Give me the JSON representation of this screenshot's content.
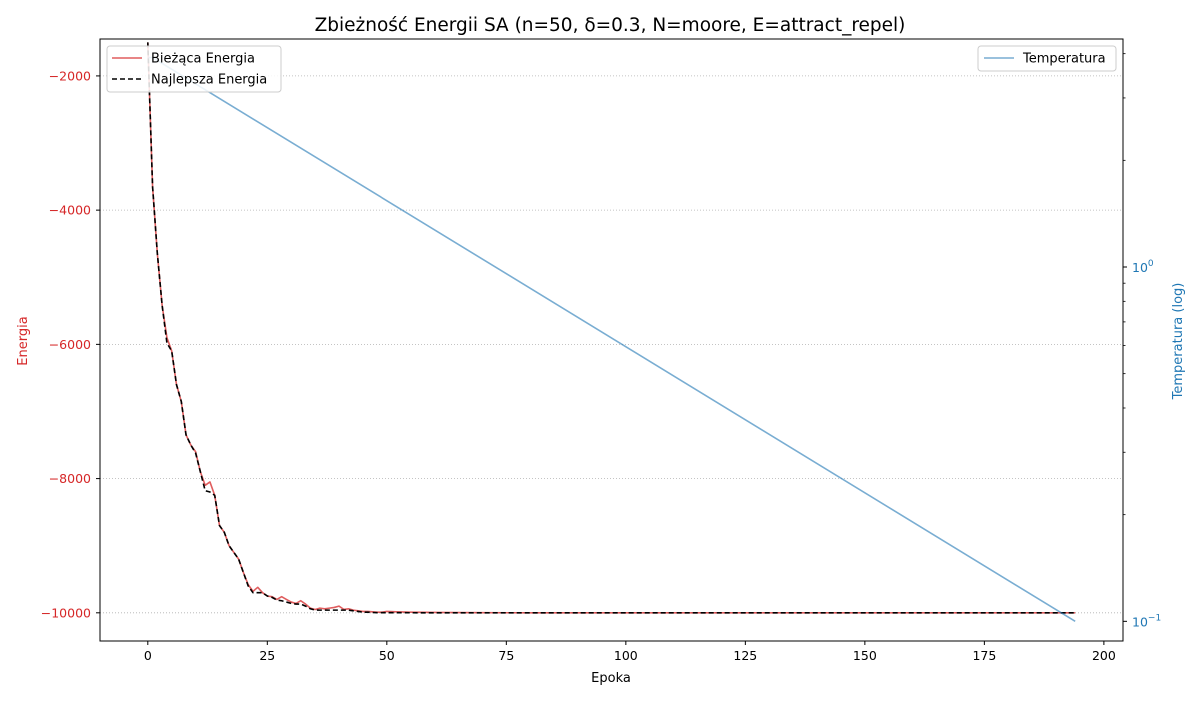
{
  "chart_data": {
    "type": "line",
    "title": "Zbieżność Energii SA (n=50, δ=0.3, N=moore, E=attract_repel)",
    "xlabel": "Epoka",
    "ylabel_left": "Energia",
    "ylabel_right": "Temperatura (log)",
    "xlim": [
      -10,
      204
    ],
    "ylim_left": [
      -10420,
      -1450
    ],
    "ylim_right": [
      0.088,
      4.4
    ],
    "yscale_right": "log",
    "x_ticks": [
      0,
      25,
      50,
      75,
      100,
      125,
      150,
      175,
      200
    ],
    "y_left_ticks": [
      -10000,
      -8000,
      -6000,
      -4000,
      -2000
    ],
    "y_left_tick_labels": [
      "−10000",
      "−8000",
      "−6000",
      "−4000",
      "−2000"
    ],
    "y_right_major_ticks": [
      0.1,
      1
    ],
    "y_right_tick_labels": [
      "10",
      "10"
    ],
    "y_right_tick_exponents": [
      "−1",
      "0"
    ],
    "y_right_minor_ticks": [
      0.2,
      0.3,
      0.4,
      0.5,
      0.6,
      0.7,
      0.8,
      0.9,
      2,
      3,
      4
    ],
    "grid": true,
    "legend_left_position": "top-left",
    "legend_right_position": "top-right",
    "colors": {
      "current_energy": "#d62728",
      "best_energy": "#000000",
      "temperature": "#1f77b4",
      "grid": "#b0b0b0"
    },
    "series": [
      {
        "name": "Bieżąca Energia",
        "axis": "left",
        "x": [
          0,
          1,
          2,
          3,
          4,
          5,
          6,
          7,
          8,
          9,
          10,
          11,
          12,
          13,
          14,
          15,
          16,
          17,
          18,
          19,
          20,
          21,
          22,
          23,
          24,
          25,
          26,
          27,
          28,
          29,
          30,
          31,
          32,
          33,
          34,
          35,
          36,
          37,
          38,
          39,
          40,
          41,
          42,
          43,
          44,
          45,
          46,
          47,
          48,
          49,
          50,
          52,
          55,
          58,
          60,
          70,
          80,
          100,
          194
        ],
        "values": [
          -1500,
          -3650,
          -4650,
          -5420,
          -5900,
          -6100,
          -6600,
          -6850,
          -7350,
          -7500,
          -7600,
          -7900,
          -8100,
          -8050,
          -8250,
          -8700,
          -8800,
          -9000,
          -9100,
          -9200,
          -9400,
          -9580,
          -9680,
          -9620,
          -9700,
          -9750,
          -9760,
          -9800,
          -9760,
          -9800,
          -9840,
          -9860,
          -9820,
          -9870,
          -9930,
          -9950,
          -9930,
          -9940,
          -9930,
          -9920,
          -9900,
          -9950,
          -9940,
          -9960,
          -9970,
          -9980,
          -9980,
          -9985,
          -9990,
          -9990,
          -9980,
          -9985,
          -9990,
          -9992,
          -9995,
          -9998,
          -10000,
          -10000,
          -10000
        ]
      },
      {
        "name": "Najlepsza Energia",
        "axis": "left",
        "x": [
          0,
          1,
          2,
          3,
          4,
          5,
          6,
          7,
          8,
          9,
          10,
          11,
          12,
          13,
          14,
          15,
          16,
          17,
          18,
          19,
          20,
          21,
          22,
          23,
          24,
          25,
          26,
          27,
          28,
          29,
          30,
          31,
          32,
          33,
          34,
          35,
          36,
          37,
          38,
          39,
          40,
          41,
          42,
          43,
          44,
          45,
          46,
          47,
          48,
          49,
          50,
          52,
          55,
          58,
          60,
          70,
          80,
          100,
          194
        ],
        "values": [
          -1500,
          -3650,
          -4650,
          -5420,
          -5980,
          -6100,
          -6600,
          -6850,
          -7350,
          -7500,
          -7620,
          -7900,
          -8180,
          -8200,
          -8250,
          -8700,
          -8800,
          -9000,
          -9100,
          -9200,
          -9400,
          -9600,
          -9700,
          -9700,
          -9700,
          -9750,
          -9770,
          -9810,
          -9820,
          -9840,
          -9860,
          -9870,
          -9870,
          -9900,
          -9940,
          -9960,
          -9960,
          -9960,
          -9960,
          -9960,
          -9960,
          -9960,
          -9960,
          -9970,
          -9980,
          -9990,
          -9990,
          -9995,
          -9998,
          -9998,
          -9998,
          -9998,
          -9999,
          -10000,
          -10000,
          -10000,
          -10000,
          -10000,
          -10000
        ]
      },
      {
        "name": "Temperatura",
        "axis": "right",
        "x": [
          0,
          1,
          194
        ],
        "values": [
          3.9,
          3.9,
          0.1
        ]
      }
    ]
  }
}
